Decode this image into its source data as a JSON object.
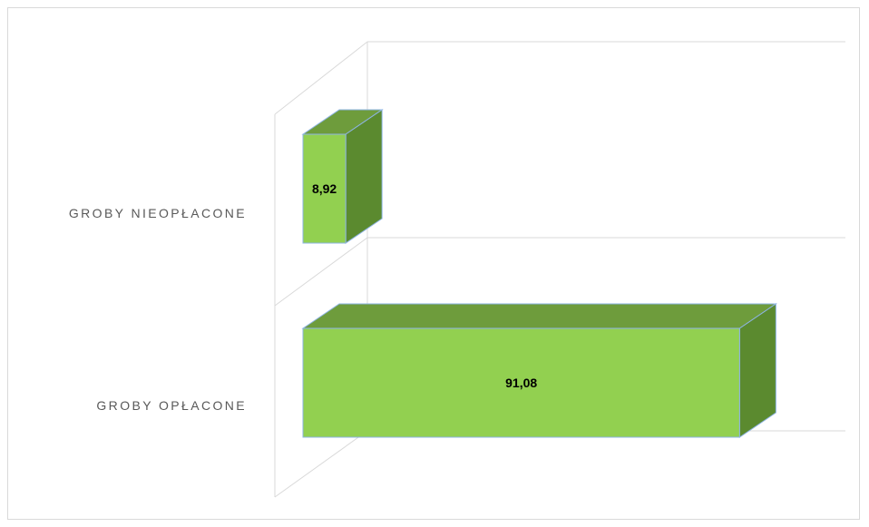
{
  "chart_data": {
    "type": "bar",
    "orientation": "horizontal",
    "style": "3d",
    "categories": [
      "GROBY NIEOPŁACONE",
      "GROBY OPŁACONE"
    ],
    "values": [
      8.92,
      91.08
    ],
    "data_labels": [
      "8,92",
      "91,08"
    ],
    "title": "",
    "xlabel": "",
    "ylabel": "",
    "xlim": [
      0,
      100
    ],
    "grid": true,
    "legend": "none",
    "colors": {
      "bar_front": "#92d050",
      "bar_top": "#6e9c3c",
      "bar_side": "#5b8a2f",
      "bar_edge": "#8eb4e3",
      "grid": "#d9d9d9",
      "category_text": "#595959",
      "data_label_text": "#000000"
    }
  }
}
